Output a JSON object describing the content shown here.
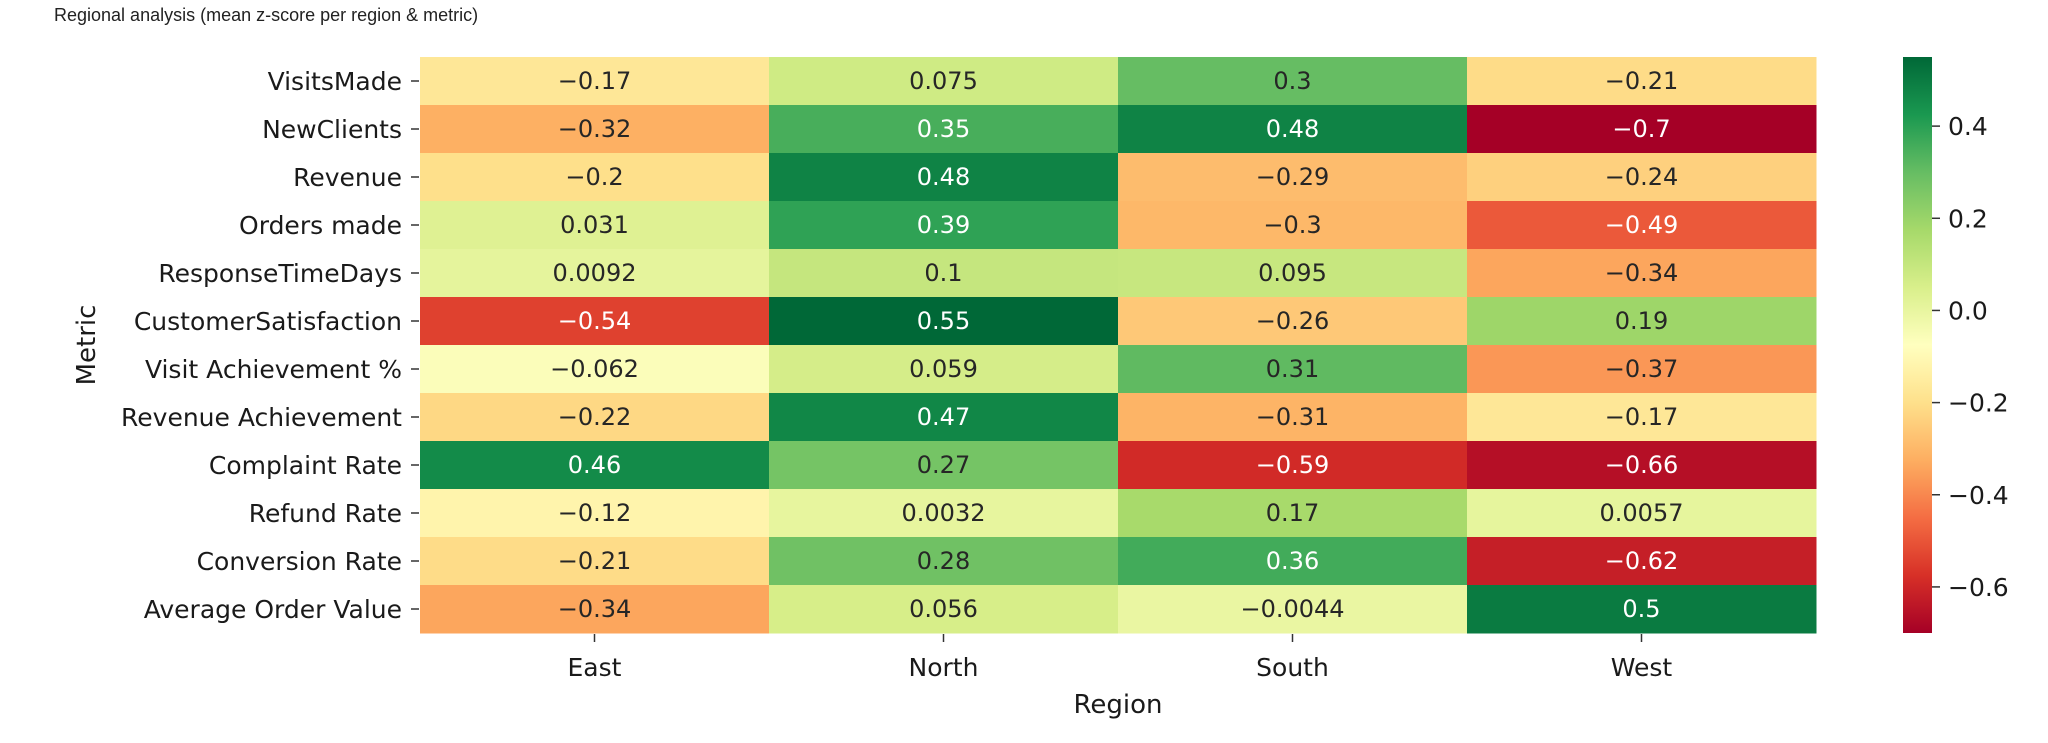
{
  "page": {
    "title": "Regional analysis (mean z-score per region & metric)"
  },
  "chart_data": {
    "type": "heatmap",
    "title": "",
    "xlabel": "Region",
    "ylabel": "Metric",
    "columns": [
      "East",
      "North",
      "South",
      "West"
    ],
    "rows": [
      "VisitsMade",
      "NewClients",
      "Revenue",
      "Orders made",
      "ResponseTimeDays",
      "CustomerSatisfaction",
      "Visit Achievement %",
      "Revenue Achievement",
      "Complaint Rate",
      "Refund Rate",
      "Conversion Rate",
      "Average Order Value"
    ],
    "values": [
      [
        -0.17,
        0.075,
        0.3,
        -0.21
      ],
      [
        -0.32,
        0.35,
        0.48,
        -0.7
      ],
      [
        -0.2,
        0.48,
        -0.29,
        -0.24
      ],
      [
        0.031,
        0.39,
        -0.3,
        -0.49
      ],
      [
        0.0092,
        0.1,
        0.095,
        -0.34
      ],
      [
        -0.54,
        0.55,
        -0.26,
        0.19
      ],
      [
        -0.062,
        0.059,
        0.31,
        -0.37
      ],
      [
        -0.22,
        0.47,
        -0.31,
        -0.17
      ],
      [
        0.46,
        0.27,
        -0.59,
        -0.66
      ],
      [
        -0.12,
        0.0032,
        0.17,
        0.0057
      ],
      [
        -0.21,
        0.28,
        0.36,
        -0.62
      ],
      [
        -0.34,
        0.056,
        -0.0044,
        0.5
      ]
    ],
    "colormap": "RdYlGn",
    "vmin": -0.7,
    "vmax": 0.55,
    "colorbar": {
      "ticks": [
        0.4,
        0.2,
        0.0,
        -0.2,
        -0.4,
        -0.6
      ],
      "tick_labels": [
        "0.4",
        "0.2",
        "0.0",
        "−0.2",
        "−0.4",
        "−0.6"
      ]
    },
    "grid": false,
    "legend": "colorbar-right"
  }
}
